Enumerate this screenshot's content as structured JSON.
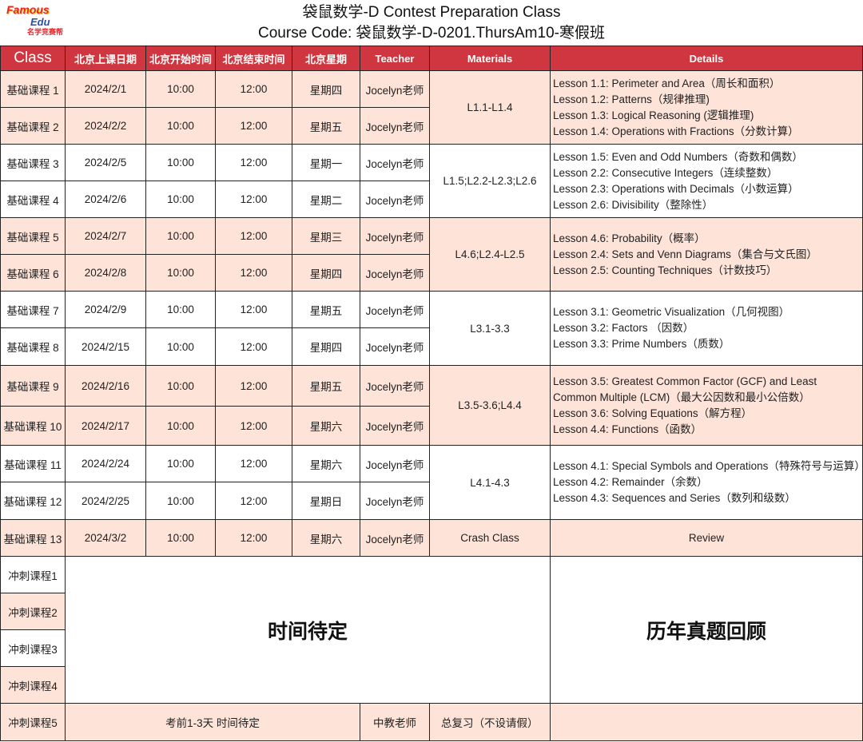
{
  "header": {
    "logo_text": [
      "Famous",
      "Edu",
      "名学竞赛帮"
    ],
    "title": "袋鼠数学-D Contest Preparation Class",
    "course_code": "Course Code: 袋鼠数学-D-0201.ThursAm10-寒假班"
  },
  "columns": [
    "Class",
    "北京上课日期",
    "北京开始时间",
    "北京结束时间",
    "北京星期",
    "Teacher",
    "Materials",
    "Details"
  ],
  "rows": [
    {
      "class": "基础课程 1",
      "date": "2024/2/1",
      "start": "10:00",
      "end": "12:00",
      "weekday": "星期四",
      "teacher": "Jocelyn老师"
    },
    {
      "class": "基础课程 2",
      "date": "2024/2/2",
      "start": "10:00",
      "end": "12:00",
      "weekday": "星期五",
      "teacher": "Jocelyn老师"
    },
    {
      "class": "基础课程 3",
      "date": "2024/2/5",
      "start": "10:00",
      "end": "12:00",
      "weekday": "星期一",
      "teacher": "Jocelyn老师"
    },
    {
      "class": "基础课程 4",
      "date": "2024/2/6",
      "start": "10:00",
      "end": "12:00",
      "weekday": "星期二",
      "teacher": "Jocelyn老师"
    },
    {
      "class": "基础课程 5",
      "date": "2024/2/7",
      "start": "10:00",
      "end": "12:00",
      "weekday": "星期三",
      "teacher": "Jocelyn老师"
    },
    {
      "class": "基础课程 6",
      "date": "2024/2/8",
      "start": "10:00",
      "end": "12:00",
      "weekday": "星期四",
      "teacher": "Jocelyn老师"
    },
    {
      "class": "基础课程 7",
      "date": "2024/2/9",
      "start": "10:00",
      "end": "12:00",
      "weekday": "星期五",
      "teacher": "Jocelyn老师"
    },
    {
      "class": "基础课程 8",
      "date": "2024/2/15",
      "start": "10:00",
      "end": "12:00",
      "weekday": "星期四",
      "teacher": "Jocelyn老师"
    },
    {
      "class": "基础课程 9",
      "date": "2024/2/16",
      "start": "10:00",
      "end": "12:00",
      "weekday": "星期五",
      "teacher": "Jocelyn老师"
    },
    {
      "class": "基础课程 10",
      "date": "2024/2/17",
      "start": "10:00",
      "end": "12:00",
      "weekday": "星期六",
      "teacher": "Jocelyn老师"
    },
    {
      "class": "基础课程 11",
      "date": "2024/2/24",
      "start": "10:00",
      "end": "12:00",
      "weekday": "星期六",
      "teacher": "Jocelyn老师"
    },
    {
      "class": "基础课程 12",
      "date": "2024/2/25",
      "start": "10:00",
      "end": "12:00",
      "weekday": "星期日",
      "teacher": "Jocelyn老师"
    },
    {
      "class": "基础课程 13",
      "date": "2024/3/2",
      "start": "10:00",
      "end": "12:00",
      "weekday": "星期六",
      "teacher": "Jocelyn老师"
    }
  ],
  "groups": [
    {
      "materials": "L1.1-L1.4",
      "details": [
        "Lesson 1.1: Perimeter and Area（周长和面积）",
        "Lesson 1.2: Patterns（规律推理)",
        "Lesson 1.3: Logical Reasoning (逻辑推理)",
        "Lesson 1.4: Operations with Fractions（分数计算）"
      ]
    },
    {
      "materials": "L1.5;L2.2-L2.3;L2.6",
      "details": [
        "Lesson 1.5: Even and Odd Numbers（奇数和偶数）",
        "Lesson 2.2: Consecutive Integers（连续整数）",
        "Lesson 2.3: Operations with Decimals（小数运算）",
        "Lesson 2.6: Divisibility（整除性）"
      ]
    },
    {
      "materials": "L4.6;L2.4-L2.5",
      "details": [
        "Lesson 4.6: Probability（概率）",
        "Lesson 2.4: Sets and Venn Diagrams（集合与文氏图）",
        "Lesson 2.5: Counting Techniques（计数技巧）"
      ]
    },
    {
      "materials": "L3.1-3.3",
      "details": [
        "Lesson 3.1: Geometric Visualization（几何视图）",
        "Lesson 3.2: Factors （因数）",
        "Lesson 3.3: Prime Numbers（质数）"
      ]
    },
    {
      "materials": "L3.5-3.6;L4.4",
      "details": [
        "Lesson 3.5: Greatest Common Factor (GCF) and Least Common Multiple (LCM)（最大公因数和最小公倍数）",
        "Lesson 3.6: Solving Equations（解方程）",
        "Lesson 4.4: Functions（函数）"
      ]
    },
    {
      "materials": "L4.1-4.3",
      "details": [
        "Lesson 4.1: Special Symbols and Operations（特殊符号与运算）",
        "Lesson 4.2: Remainder（余数）",
        "Lesson 4.3: Sequences and Series（数列和级数）"
      ]
    },
    {
      "materials": "Crash Class",
      "details": [
        "Review"
      ]
    }
  ],
  "sprint": {
    "classes": [
      "冲刺课程1",
      "冲刺课程2",
      "冲刺课程3",
      "冲刺课程4",
      "冲刺课程5"
    ],
    "time_tbd": "时间待定",
    "review_past": "历年真题回顾",
    "last_time": "考前1-3天  时间待定",
    "last_teacher": "中教老师",
    "last_materials": "总复习（不设请假）"
  },
  "colors": {
    "header_red": "#d0363f",
    "peach": "#fde3d8"
  }
}
